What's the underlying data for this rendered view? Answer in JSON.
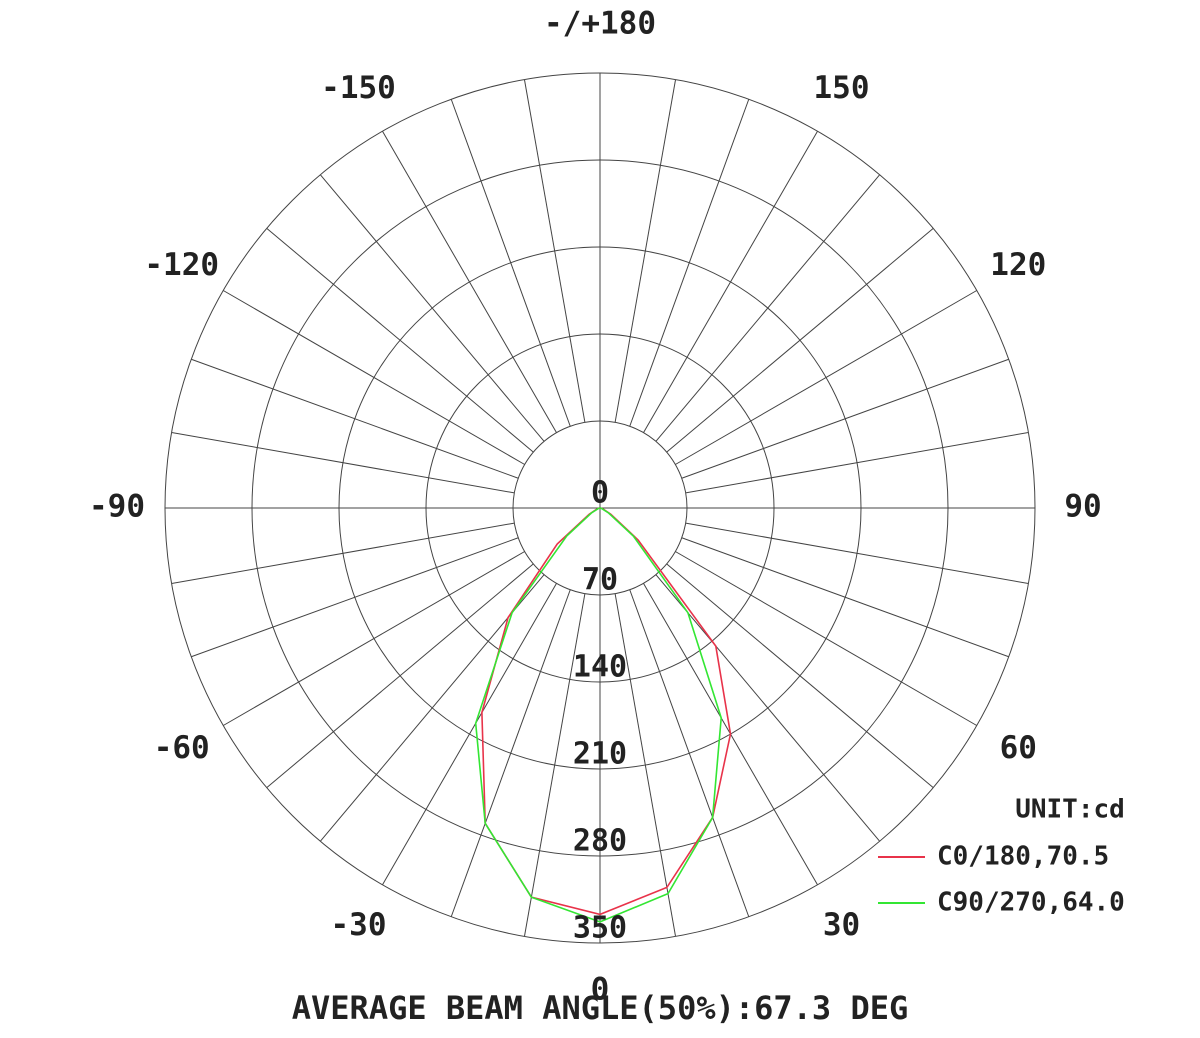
{
  "chart_data": {
    "type": "polar",
    "theta_ticks": [
      {
        "value": 180,
        "label": "-/+180"
      },
      -150,
      -120,
      -90,
      -60,
      -30,
      0,
      30,
      60,
      90,
      120,
      150
    ],
    "rlim": [
      0,
      350
    ],
    "rticks": [
      0,
      70,
      140,
      210,
      280,
      350
    ],
    "x": [
      -90,
      -80,
      -70,
      -60,
      -50,
      -40,
      -30,
      -20,
      -10,
      0,
      10,
      20,
      30,
      40,
      50,
      60,
      70,
      80,
      90
    ],
    "series": [
      {
        "name": "C0/180,70.5",
        "color": "#e8334a",
        "values": [
          0,
          1,
          3,
          10,
          45,
          115,
          190,
          270,
          318,
          327,
          310,
          265,
          210,
          145,
          40,
          10,
          3,
          1,
          0
        ]
      },
      {
        "name": "C90/270,64.0",
        "color": "#33e633",
        "values": [
          0,
          1,
          2,
          8,
          35,
          110,
          200,
          270,
          318,
          333,
          315,
          265,
          195,
          110,
          35,
          8,
          2,
          1,
          0
        ]
      }
    ],
    "legend_title": "UNIT:cd",
    "annotation": "AVERAGE BEAM ANGLE(50%):67.3 DEG",
    "grid": true
  }
}
